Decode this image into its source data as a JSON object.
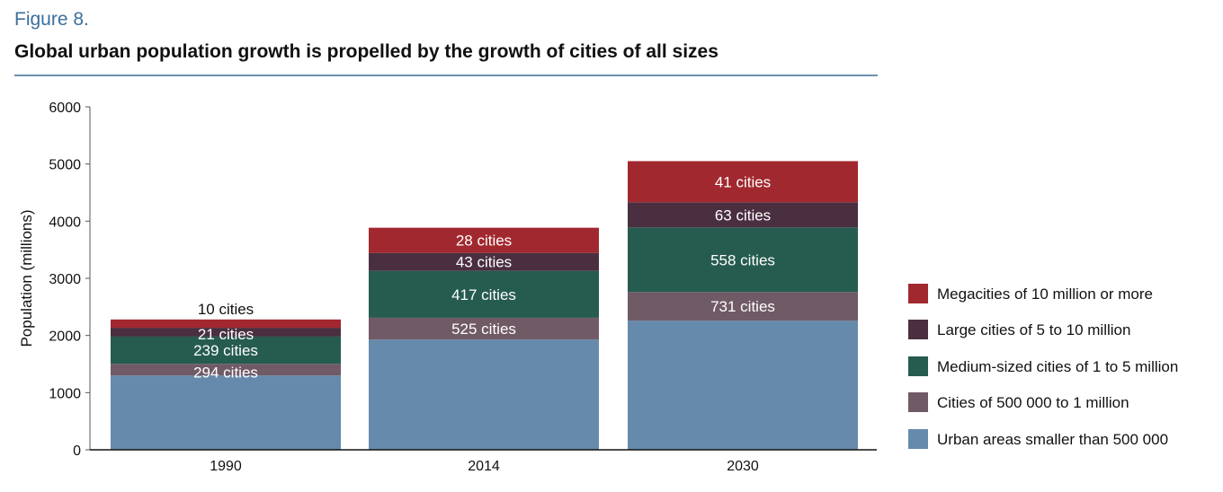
{
  "figure_label": "Figure 8.",
  "chart_data": {
    "type": "bar",
    "stacked": true,
    "title": "Global urban population growth is propelled by the growth of cities of all sizes",
    "ylabel": "Population (millions)",
    "xlabel": "",
    "ylim": [
      0,
      6000
    ],
    "yticks": [
      0,
      1000,
      2000,
      3000,
      4000,
      5000,
      6000
    ],
    "categories": [
      "1990",
      "2014",
      "2030"
    ],
    "legend_position": "right",
    "series": [
      {
        "name": "Urban areas smaller than 500 000",
        "color": "#668aab",
        "values": [
          1300,
          1930,
          2260
        ],
        "labels": [
          "",
          "",
          ""
        ]
      },
      {
        "name": "Cities of 500 000 to 1 million",
        "color": "#705a66",
        "values": [
          205,
          380,
          500
        ],
        "labels": [
          "294 cities",
          "525 cities",
          "731 cities"
        ]
      },
      {
        "name": "Medium-sized cities of 1 to 5 million",
        "color": "#265c4f",
        "values": [
          475,
          820,
          1130
        ],
        "labels": [
          "239 cities",
          "417 cities",
          "558 cities"
        ]
      },
      {
        "name": "Large cities of 5 to 10 million",
        "color": "#4a2f40",
        "values": [
          155,
          315,
          440
        ],
        "labels": [
          "21 cities",
          "43 cities",
          "63 cities"
        ]
      },
      {
        "name": "Megacities of 10 million or more",
        "color": "#a2282f",
        "values": [
          145,
          440,
          720
        ],
        "labels": [
          "10 cities",
          "28 cities",
          "41 cities"
        ]
      }
    ]
  }
}
